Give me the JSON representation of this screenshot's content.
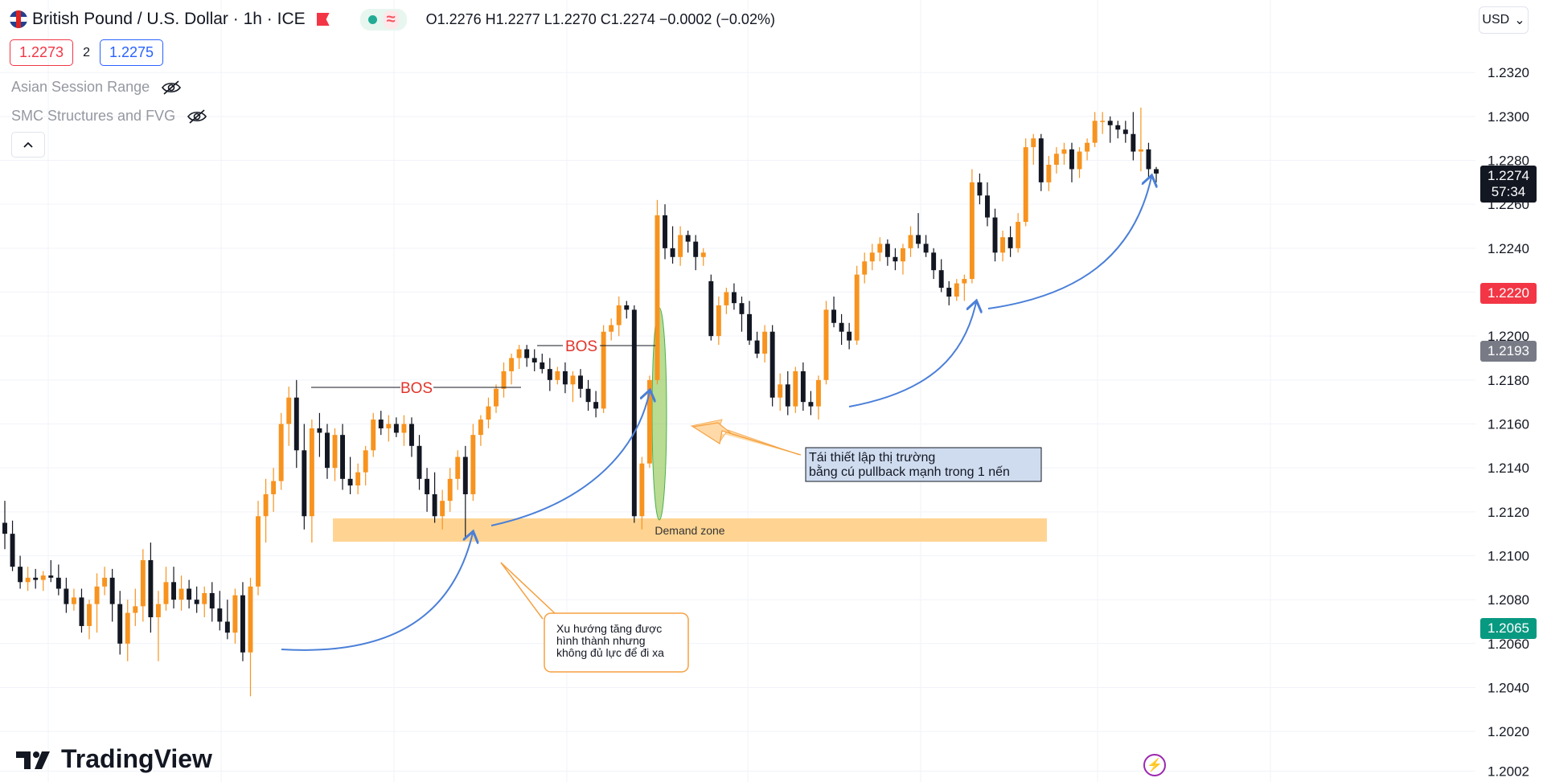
{
  "header": {
    "symbol_title": "British Pound / U.S. Dollar · 1h · ICE",
    "ohlc": "O1.2276  H1.2277  L1.2270  C1.2274  −0.0002 (−0.02%)",
    "live_symbol": "≈",
    "currency": "USD",
    "currency_chevron": "⌄"
  },
  "quote": {
    "bid": "1.2273",
    "spread": "2",
    "ask": "1.2275"
  },
  "indicators": [
    {
      "label": "Asian Session Range"
    },
    {
      "label": "SMC Structures and FVG"
    }
  ],
  "collapse_icon": "^",
  "brand": {
    "name": "TradingView"
  },
  "price_labels": [
    {
      "text": "1.2274",
      "subtext": "57:34",
      "color": "#131722"
    },
    {
      "text": "1.2220",
      "color": "#f23645"
    },
    {
      "text": "1.2193",
      "color": "#787b86"
    },
    {
      "text": "1.2065",
      "color": "#089981"
    }
  ],
  "chart_data": {
    "type": "candlestick",
    "y_axis_ticks": [
      "1.2320",
      "1.2300",
      "1.2280",
      "1.2260",
      "1.2240",
      "1.2220",
      "1.2200",
      "1.2180",
      "1.2160",
      "1.2140",
      "1.2120",
      "1.2100",
      "1.2080",
      "1.2060",
      "1.2040",
      "1.2020",
      "1.2002"
    ],
    "ylim": [
      1.1997,
      1.2353
    ],
    "colors": {
      "up": "#f7931e",
      "down": "#131722"
    },
    "annotations": {
      "bos_1": "BOS",
      "bos_2": "BOS",
      "demand_zone": "Demand zone",
      "note_reset_line1": "Tái thiết lập thị trường",
      "note_reset_line2": "bằng cú pullback mạnh trong 1 nến",
      "note_trend_line1": "Xu hướng tăng được",
      "note_trend_line2": "hình thành nhưng",
      "note_trend_line3": "không đủ lực để đi xa"
    },
    "ohlc": [
      [
        1.2115,
        1.2125,
        1.2103,
        1.211
      ],
      [
        1.211,
        1.2116,
        1.2093,
        1.2095
      ],
      [
        1.2095,
        1.21,
        1.2085,
        1.2088
      ],
      [
        1.2088,
        1.2095,
        1.2084,
        1.209
      ],
      [
        1.209,
        1.2094,
        1.2085,
        1.2089
      ],
      [
        1.2089,
        1.2093,
        1.2084,
        1.2091
      ],
      [
        1.2091,
        1.2098,
        1.2088,
        1.209
      ],
      [
        1.209,
        1.2096,
        1.2082,
        1.2085
      ],
      [
        1.2085,
        1.209,
        1.2074,
        1.2078
      ],
      [
        1.2078,
        1.2085,
        1.2075,
        1.2081
      ],
      [
        1.2081,
        1.2085,
        1.2065,
        1.2068
      ],
      [
        1.2068,
        1.208,
        1.2062,
        1.2078
      ],
      [
        1.2078,
        1.2092,
        1.2065,
        1.2086
      ],
      [
        1.2086,
        1.2095,
        1.2082,
        1.209
      ],
      [
        1.209,
        1.2094,
        1.207,
        1.2078
      ],
      [
        1.2078,
        1.2084,
        1.2055,
        1.206
      ],
      [
        1.206,
        1.208,
        1.2052,
        1.2074
      ],
      [
        1.2074,
        1.2085,
        1.2068,
        1.2077
      ],
      [
        1.2077,
        1.2103,
        1.207,
        1.2098
      ],
      [
        1.2098,
        1.2106,
        1.2065,
        1.2072
      ],
      [
        1.2072,
        1.2084,
        1.2052,
        1.2078
      ],
      [
        1.2078,
        1.2095,
        1.2075,
        1.2088
      ],
      [
        1.2088,
        1.2095,
        1.2076,
        1.208
      ],
      [
        1.208,
        1.2091,
        1.2075,
        1.2085
      ],
      [
        1.2085,
        1.2089,
        1.2076,
        1.208
      ],
      [
        1.208,
        1.2086,
        1.2074,
        1.2078
      ],
      [
        1.2078,
        1.2086,
        1.2072,
        1.2083
      ],
      [
        1.2083,
        1.2088,
        1.207,
        1.2076
      ],
      [
        1.2076,
        1.2084,
        1.2066,
        1.207
      ],
      [
        1.207,
        1.208,
        1.2062,
        1.2065
      ],
      [
        1.2065,
        1.2085,
        1.206,
        1.2082
      ],
      [
        1.2082,
        1.2088,
        1.2052,
        1.2056
      ],
      [
        1.2056,
        1.209,
        1.2036,
        1.2086
      ],
      [
        1.2086,
        1.2125,
        1.2082,
        1.2118
      ],
      [
        1.2118,
        1.2135,
        1.2106,
        1.2128
      ],
      [
        1.2128,
        1.214,
        1.212,
        1.2134
      ],
      [
        1.2134,
        1.2165,
        1.213,
        1.216
      ],
      [
        1.216,
        1.2177,
        1.215,
        1.2172
      ],
      [
        1.2172,
        1.218,
        1.214,
        1.2148
      ],
      [
        1.2148,
        1.216,
        1.2112,
        1.2118
      ],
      [
        1.2118,
        1.2162,
        1.2106,
        1.2158
      ],
      [
        1.2158,
        1.2165,
        1.2145,
        1.2156
      ],
      [
        1.2156,
        1.216,
        1.2135,
        1.214
      ],
      [
        1.214,
        1.2158,
        1.2134,
        1.2155
      ],
      [
        1.2155,
        1.216,
        1.213,
        1.2135
      ],
      [
        1.2135,
        1.2145,
        1.2128,
        1.2132
      ],
      [
        1.2132,
        1.2142,
        1.2128,
        1.2138
      ],
      [
        1.2138,
        1.215,
        1.2132,
        1.2148
      ],
      [
        1.2148,
        1.2165,
        1.2145,
        1.2162
      ],
      [
        1.2162,
        1.2166,
        1.2155,
        1.2158
      ],
      [
        1.2158,
        1.2164,
        1.2152,
        1.216
      ],
      [
        1.216,
        1.2163,
        1.2154,
        1.2156
      ],
      [
        1.2156,
        1.2164,
        1.215,
        1.216
      ],
      [
        1.216,
        1.2163,
        1.2145,
        1.215
      ],
      [
        1.215,
        1.2155,
        1.213,
        1.2135
      ],
      [
        1.2135,
        1.214,
        1.212,
        1.2128
      ],
      [
        1.2128,
        1.2138,
        1.2115,
        1.2118
      ],
      [
        1.2118,
        1.213,
        1.2112,
        1.2125
      ],
      [
        1.2125,
        1.214,
        1.212,
        1.2135
      ],
      [
        1.2135,
        1.2148,
        1.213,
        1.2145
      ],
      [
        1.2145,
        1.215,
        1.2108,
        1.2128
      ],
      [
        1.2128,
        1.216,
        1.2125,
        1.2155
      ],
      [
        1.2155,
        1.2164,
        1.215,
        1.2162
      ],
      [
        1.2162,
        1.2172,
        1.2158,
        1.2168
      ],
      [
        1.2168,
        1.2178,
        1.2165,
        1.2176
      ],
      [
        1.2176,
        1.2188,
        1.2172,
        1.2184
      ],
      [
        1.2184,
        1.2192,
        1.2178,
        1.219
      ],
      [
        1.219,
        1.2196,
        1.2185,
        1.2194
      ],
      [
        1.2194,
        1.2196,
        1.2186,
        1.219
      ],
      [
        1.219,
        1.2194,
        1.2184,
        1.2188
      ],
      [
        1.2188,
        1.2192,
        1.2183,
        1.2185
      ],
      [
        1.2185,
        1.219,
        1.2175,
        1.218
      ],
      [
        1.218,
        1.2186,
        1.2178,
        1.2184
      ],
      [
        1.2184,
        1.2188,
        1.2174,
        1.2178
      ],
      [
        1.2178,
        1.2184,
        1.217,
        1.2182
      ],
      [
        1.2182,
        1.2185,
        1.2172,
        1.2176
      ],
      [
        1.2176,
        1.218,
        1.2166,
        1.217
      ],
      [
        1.217,
        1.2175,
        1.2163,
        1.2167
      ],
      [
        1.2167,
        1.2205,
        1.2165,
        1.2202
      ],
      [
        1.2202,
        1.2208,
        1.2198,
        1.2205
      ],
      [
        1.2205,
        1.2218,
        1.22,
        1.2214
      ],
      [
        1.2214,
        1.2216,
        1.2208,
        1.2212
      ],
      [
        1.2212,
        1.2214,
        1.2115,
        1.2118
      ],
      [
        1.2118,
        1.2145,
        1.2112,
        1.2142
      ],
      [
        1.2142,
        1.2182,
        1.214,
        1.218
      ],
      [
        1.218,
        1.2262,
        1.2178,
        1.2255
      ],
      [
        1.2255,
        1.226,
        1.2235,
        1.224
      ],
      [
        1.224,
        1.225,
        1.2233,
        1.2236
      ],
      [
        1.2236,
        1.225,
        1.2232,
        1.2246
      ],
      [
        1.2246,
        1.2248,
        1.2238,
        1.2243
      ],
      [
        1.2243,
        1.2246,
        1.223,
        1.2236
      ],
      [
        1.2236,
        1.224,
        1.2232,
        1.2238
      ],
      [
        1.2225,
        1.2228,
        1.2198,
        1.22
      ],
      [
        1.22,
        1.2218,
        1.2196,
        1.2214
      ],
      [
        1.2214,
        1.2222,
        1.221,
        1.222
      ],
      [
        1.222,
        1.2224,
        1.2212,
        1.2215
      ],
      [
        1.2215,
        1.2218,
        1.2202,
        1.221
      ],
      [
        1.221,
        1.2216,
        1.2196,
        1.2198
      ],
      [
        1.2198,
        1.2202,
        1.219,
        1.2192
      ],
      [
        1.2192,
        1.2205,
        1.2188,
        1.2202
      ],
      [
        1.2202,
        1.2205,
        1.2168,
        1.2172
      ],
      [
        1.2172,
        1.2183,
        1.2166,
        1.2178
      ],
      [
        1.2178,
        1.2184,
        1.2164,
        1.2168
      ],
      [
        1.2168,
        1.2186,
        1.2165,
        1.2184
      ],
      [
        1.2184,
        1.2188,
        1.2166,
        1.217
      ],
      [
        1.217,
        1.2175,
        1.2164,
        1.2168
      ],
      [
        1.2168,
        1.2182,
        1.2162,
        1.218
      ],
      [
        1.218,
        1.2216,
        1.2178,
        1.2212
      ],
      [
        1.2212,
        1.2218,
        1.2204,
        1.2206
      ],
      [
        1.2206,
        1.221,
        1.2196,
        1.2202
      ],
      [
        1.2202,
        1.2206,
        1.2194,
        1.2198
      ],
      [
        1.2198,
        1.2232,
        1.2196,
        1.2228
      ],
      [
        1.2228,
        1.2238,
        1.2224,
        1.2234
      ],
      [
        1.2234,
        1.2242,
        1.223,
        1.2238
      ],
      [
        1.2238,
        1.2245,
        1.2234,
        1.2242
      ],
      [
        1.2242,
        1.2244,
        1.2232,
        1.2236
      ],
      [
        1.2236,
        1.224,
        1.223,
        1.2234
      ],
      [
        1.2234,
        1.2242,
        1.2228,
        1.224
      ],
      [
        1.224,
        1.225,
        1.2236,
        1.2246
      ],
      [
        1.2246,
        1.2256,
        1.224,
        1.2242
      ],
      [
        1.2242,
        1.2246,
        1.2236,
        1.2238
      ],
      [
        1.2238,
        1.224,
        1.2226,
        1.223
      ],
      [
        1.223,
        1.2235,
        1.222,
        1.2222
      ],
      [
        1.2222,
        1.2225,
        1.2214,
        1.2218
      ],
      [
        1.2218,
        1.2226,
        1.2216,
        1.2224
      ],
      [
        1.2224,
        1.2228,
        1.2216,
        1.2226
      ],
      [
        1.2226,
        1.2276,
        1.2224,
        1.227
      ],
      [
        1.227,
        1.2274,
        1.226,
        1.2264
      ],
      [
        1.2264,
        1.227,
        1.225,
        1.2254
      ],
      [
        1.2254,
        1.2258,
        1.2234,
        1.2238
      ],
      [
        1.2238,
        1.2248,
        1.2234,
        1.2245
      ],
      [
        1.2245,
        1.225,
        1.2236,
        1.224
      ],
      [
        1.224,
        1.2256,
        1.2238,
        1.2252
      ],
      [
        1.2252,
        1.229,
        1.225,
        1.2286
      ],
      [
        1.2286,
        1.2292,
        1.2278,
        1.229
      ],
      [
        1.229,
        1.2292,
        1.2266,
        1.227
      ],
      [
        1.227,
        1.2282,
        1.2266,
        1.2278
      ],
      [
        1.2278,
        1.2286,
        1.2274,
        1.2283
      ],
      [
        1.2283,
        1.2288,
        1.2278,
        1.2285
      ],
      [
        1.2285,
        1.2288,
        1.227,
        1.2276
      ],
      [
        1.2276,
        1.2286,
        1.2272,
        1.2284
      ],
      [
        1.2284,
        1.229,
        1.228,
        1.2288
      ],
      [
        1.2288,
        1.2302,
        1.2286,
        1.2298
      ],
      [
        1.2298,
        1.2302,
        1.2292,
        1.2298
      ],
      [
        1.2298,
        1.23,
        1.2288,
        1.2296
      ],
      [
        1.2296,
        1.2298,
        1.229,
        1.2294
      ],
      [
        1.2294,
        1.2298,
        1.2288,
        1.2292
      ],
      [
        1.2292,
        1.2302,
        1.228,
        1.2284
      ],
      [
        1.2284,
        1.2304,
        1.2275,
        1.2285
      ],
      [
        1.2285,
        1.2288,
        1.2272,
        1.2276
      ],
      [
        1.2276,
        1.2277,
        1.227,
        1.2274
      ]
    ]
  }
}
